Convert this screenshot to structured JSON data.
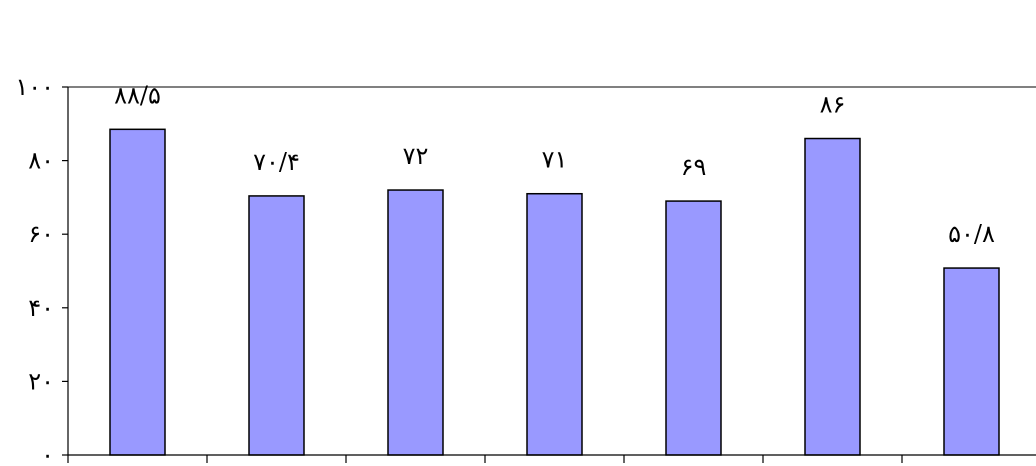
{
  "chart_data": {
    "type": "bar",
    "categories": [
      "",
      "",
      "",
      "",
      "",
      "",
      ""
    ],
    "values": [
      88.5,
      70.4,
      72,
      71,
      69,
      86,
      50.8
    ],
    "data_labels": [
      "۸۸/۵",
      "۷۰/۴",
      "۷۲",
      "۷۱",
      "۶۹",
      "۸۶",
      "۵۰/۸"
    ],
    "title": "",
    "xlabel": "",
    "ylabel": "",
    "ylim": [
      0,
      100
    ],
    "y_ticks": [
      0,
      20,
      40,
      60,
      80,
      100
    ],
    "y_tick_labels": [
      "۰",
      "۲۰",
      "۴۰",
      "۶۰",
      "۸۰",
      "۱۰۰"
    ],
    "grid": "top line only",
    "legend": "none",
    "bar_color": "#9999ff",
    "bar_border_color": "#000000"
  }
}
